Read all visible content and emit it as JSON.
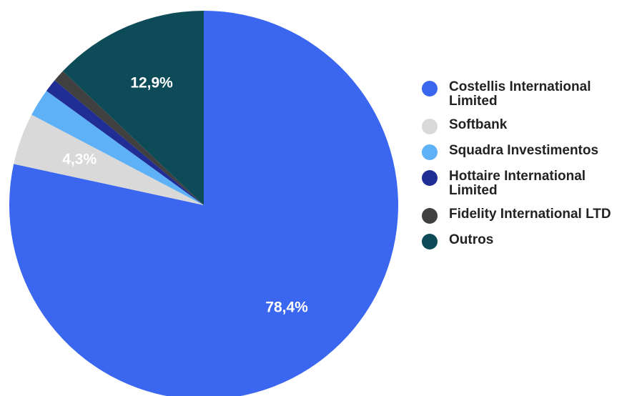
{
  "chart_data": {
    "type": "pie",
    "categories": [
      "Costellis International Limited",
      "Softbank",
      "Squadra Investimentos",
      "Hottaire International Limited",
      "Fidelity International LTD",
      "Outros"
    ],
    "values": [
      78.4,
      4.3,
      2.3,
      1.1,
      1.0,
      12.9
    ],
    "data_labels": [
      "78,4%",
      "4,3%",
      "",
      "",
      "",
      "12,9%"
    ],
    "colors": [
      "#3b66f0",
      "#d9d9d9",
      "#5eb0f7",
      "#1f2d94",
      "#404040",
      "#0e4b58"
    ],
    "legend_position": "right",
    "title": ""
  }
}
